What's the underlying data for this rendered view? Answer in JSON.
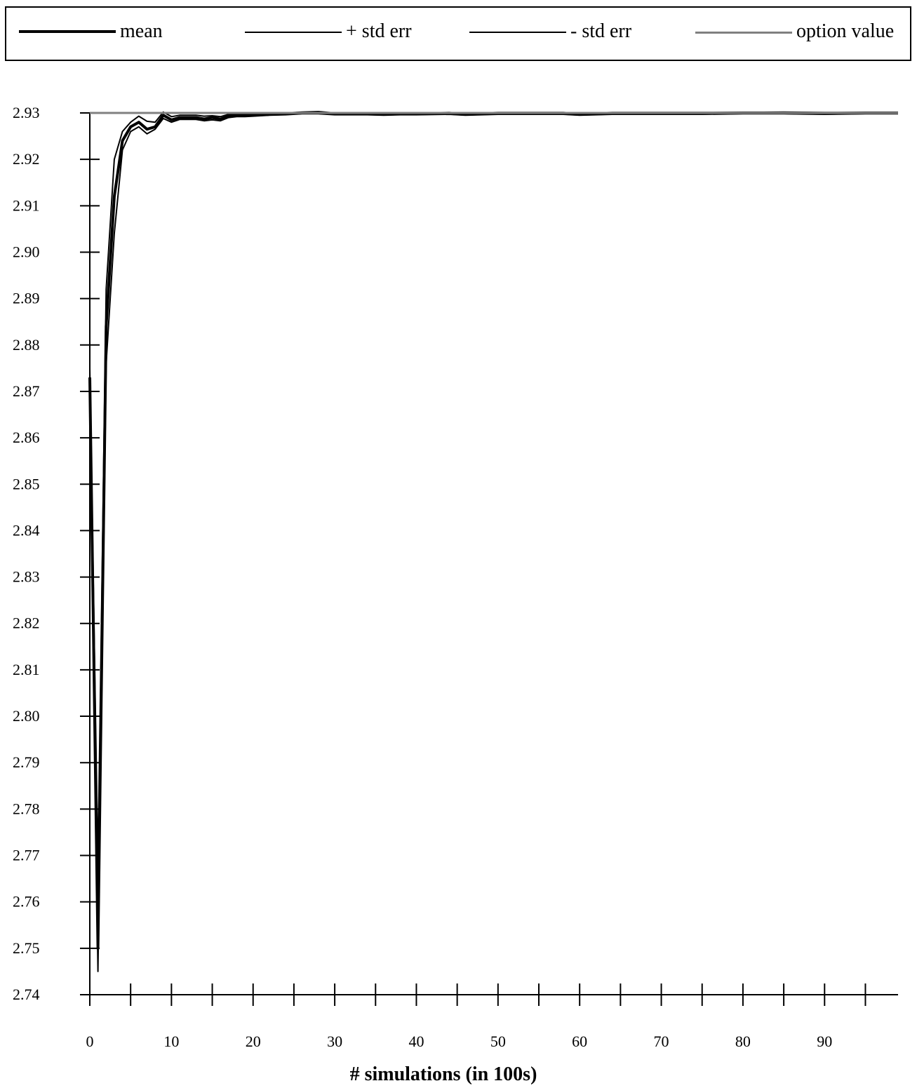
{
  "chart_data": {
    "type": "line",
    "title": "",
    "xlabel": "# simulations (in 100s)",
    "ylabel": "",
    "xlim": [
      0,
      99
    ],
    "ylim": [
      2.74,
      2.93
    ],
    "x_ticks": [
      0,
      10,
      20,
      30,
      40,
      50,
      60,
      70,
      80,
      90
    ],
    "y_ticks": [
      2.74,
      2.75,
      2.76,
      2.77,
      2.78,
      2.79,
      2.8,
      2.81,
      2.82,
      2.83,
      2.84,
      2.85,
      2.86,
      2.87,
      2.88,
      2.89,
      2.9,
      2.91,
      2.92,
      2.93
    ],
    "y_tick_labels": [
      "2.74",
      "2.75",
      "2.76",
      "2.77",
      "2.78",
      "2.79",
      "2.80",
      "2.81",
      "2.82",
      "2.83",
      "2.84",
      "2.85",
      "2.86",
      "2.87",
      "2.88",
      "2.89",
      "2.90",
      "2.91",
      "2.92",
      "2.93"
    ],
    "grid": false,
    "legend_position": "top",
    "x": [
      0,
      1,
      2,
      3,
      4,
      5,
      6,
      7,
      8,
      9,
      10,
      11,
      12,
      13,
      14,
      15,
      16,
      17,
      18,
      19,
      20,
      22,
      24,
      26,
      28,
      30,
      32,
      34,
      36,
      38,
      40,
      44,
      46,
      48,
      50,
      55,
      58,
      60,
      62,
      64,
      70,
      75,
      80,
      85,
      90,
      95,
      99
    ],
    "series": [
      {
        "name": "mean",
        "color": "#000000",
        "width": 4,
        "values": [
          2.873,
          2.75,
          2.884,
          2.912,
          2.924,
          2.927,
          2.928,
          2.9265,
          2.927,
          2.9295,
          2.9285,
          2.929,
          2.929,
          2.929,
          2.9287,
          2.929,
          2.9287,
          2.9293,
          2.9295,
          2.9295,
          2.9295,
          2.9297,
          2.9298,
          2.93,
          2.93,
          2.9298,
          2.9298,
          2.9298,
          2.9297,
          2.9298,
          2.9298,
          2.9299,
          2.9297,
          2.9298,
          2.9299,
          2.9299,
          2.9299,
          2.9297,
          2.9298,
          2.9299,
          2.9299,
          2.9299,
          2.93,
          2.93,
          2.9299,
          2.93,
          2.93
        ]
      },
      {
        "name": "+ std err",
        "color": "#000000",
        "width": 2,
        "values": [
          2.875,
          2.768,
          2.892,
          2.92,
          2.926,
          2.928,
          2.9293,
          2.9282,
          2.928,
          2.9302,
          2.9292,
          2.9295,
          2.9295,
          2.9295,
          2.9293,
          2.9294,
          2.9292,
          2.9297,
          2.9298,
          2.9298,
          2.9298,
          2.9299,
          2.93,
          2.9302,
          2.9303,
          2.93,
          2.93,
          2.93,
          2.9299,
          2.93,
          2.93,
          2.9301,
          2.9299,
          2.93,
          2.9301,
          2.9301,
          2.9301,
          2.9299,
          2.93,
          2.9301,
          2.9301,
          2.9301,
          2.9301,
          2.9302,
          2.9301,
          2.9301,
          2.9301
        ]
      },
      {
        "name": "- std err",
        "color": "#000000",
        "width": 2,
        "values": [
          2.871,
          2.745,
          2.876,
          2.904,
          2.922,
          2.926,
          2.927,
          2.9255,
          2.9265,
          2.9288,
          2.928,
          2.9286,
          2.9286,
          2.9286,
          2.9283,
          2.9285,
          2.9283,
          2.929,
          2.9292,
          2.9292,
          2.9293,
          2.9295,
          2.9296,
          2.9298,
          2.9298,
          2.9296,
          2.9296,
          2.9296,
          2.9295,
          2.9296,
          2.9296,
          2.9297,
          2.9295,
          2.9296,
          2.9297,
          2.9297,
          2.9297,
          2.9295,
          2.9296,
          2.9297,
          2.9297,
          2.9297,
          2.9298,
          2.9298,
          2.9297,
          2.9298,
          2.9298
        ]
      },
      {
        "name": "option value",
        "color": "#808080",
        "width": 3,
        "values": [
          2.93,
          2.93,
          2.93,
          2.93,
          2.93,
          2.93,
          2.93,
          2.93,
          2.93,
          2.93,
          2.93,
          2.93,
          2.93,
          2.93,
          2.93,
          2.93,
          2.93,
          2.93,
          2.93,
          2.93,
          2.93,
          2.93,
          2.93,
          2.93,
          2.93,
          2.93,
          2.93,
          2.93,
          2.93,
          2.93,
          2.93,
          2.93,
          2.93,
          2.93,
          2.93,
          2.93,
          2.93,
          2.93,
          2.93,
          2.93,
          2.93,
          2.93,
          2.93,
          2.93,
          2.93,
          2.93,
          2.93
        ]
      }
    ]
  }
}
